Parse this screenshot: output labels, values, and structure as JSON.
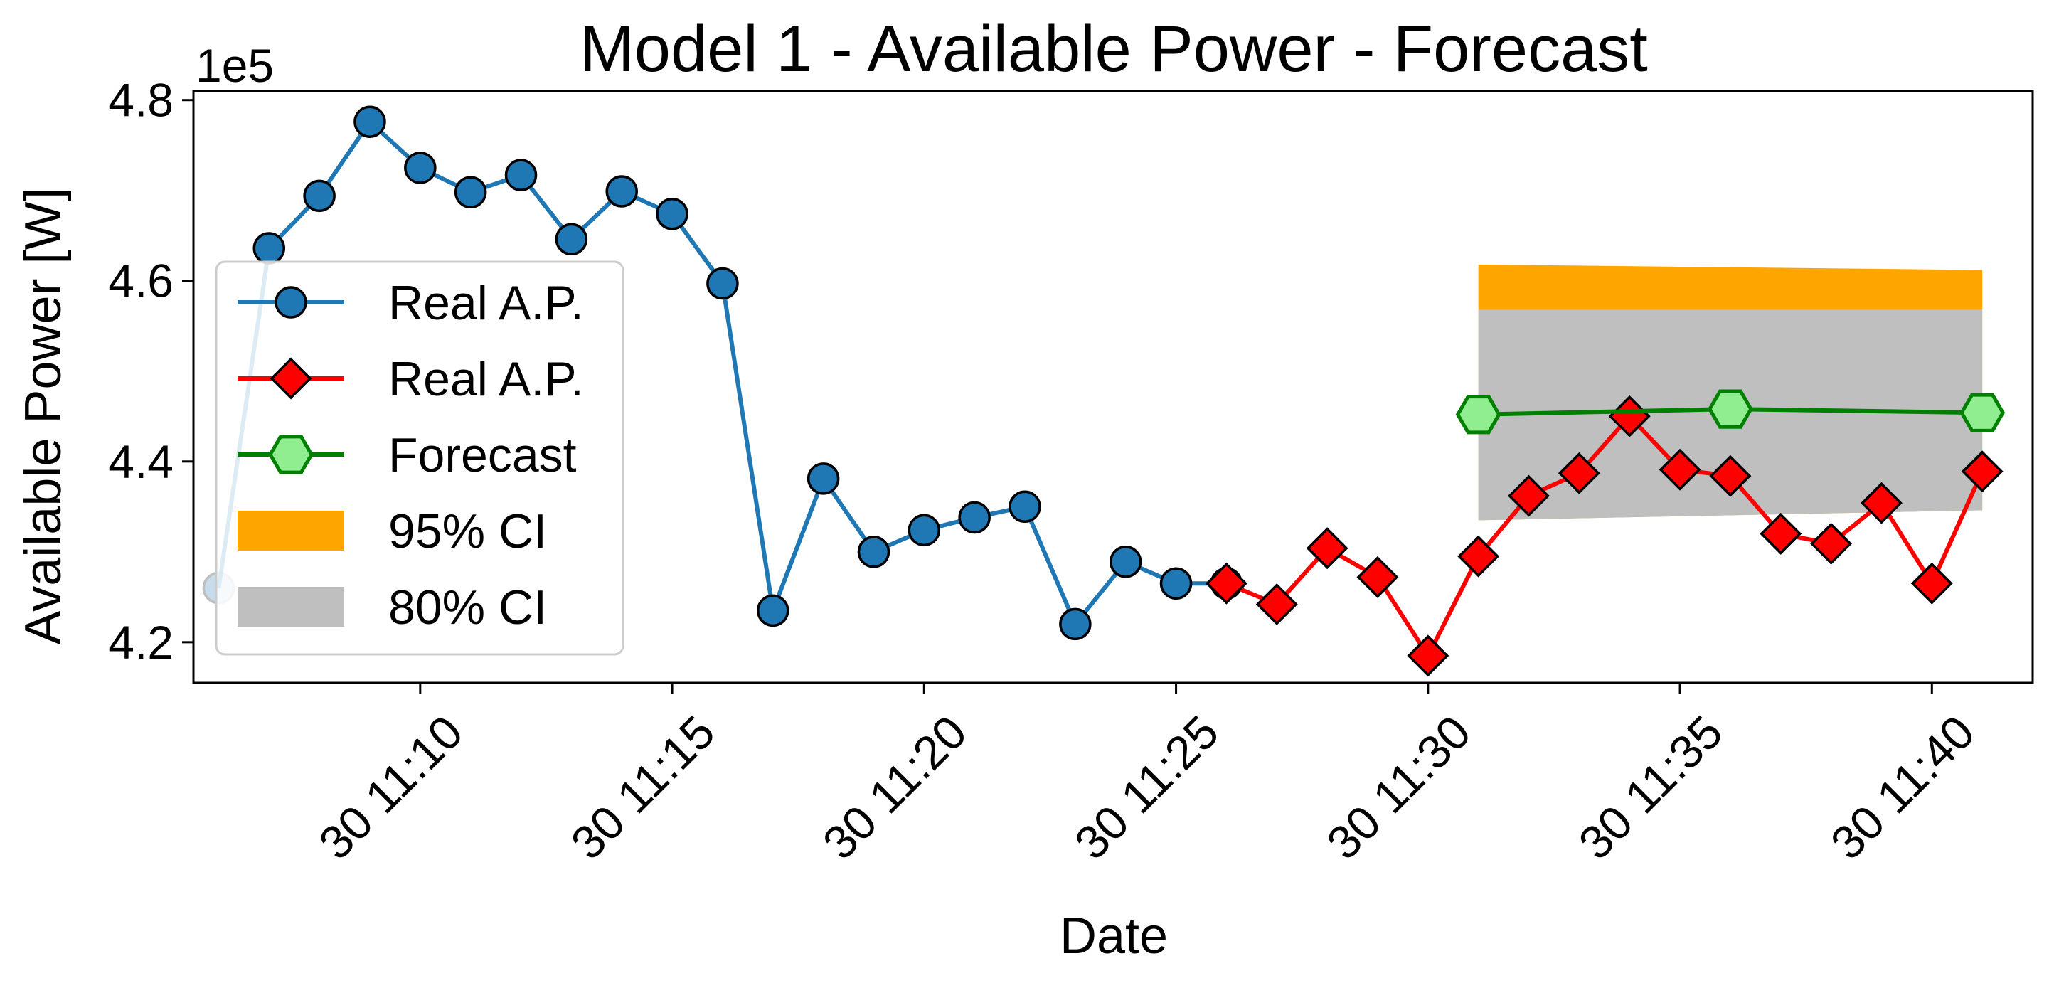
{
  "chart_data": {
    "type": "line",
    "title": "Model 1 - Available Power - Forecast",
    "xlabel": "Date",
    "ylabel": "Available Power [W]",
    "y_offset_text": "1e5",
    "y_scale_factor": 100000,
    "xlim": [
      "11:05:30",
      "11:42:00"
    ],
    "ylim": [
      4.155,
      4.81
    ],
    "x_ticks": [
      "30 11:10",
      "30 11:15",
      "30 11:20",
      "30 11:25",
      "30 11:30",
      "30 11:35",
      "30 11:40"
    ],
    "x_tick_times": [
      "11:10",
      "11:15",
      "11:20",
      "11:25",
      "11:30",
      "11:35",
      "11:40"
    ],
    "y_ticks": [
      4.2,
      4.4,
      4.6,
      4.8
    ],
    "y_tick_labels": [
      "4.2",
      "4.4",
      "4.6",
      "4.8"
    ],
    "x_tick_rotation": 45,
    "grid": false,
    "legend_position": "center-left",
    "series": [
      {
        "name": "Real A.P.",
        "color": "#1f77b4",
        "marker": "circle",
        "x": [
          "11:06",
          "11:07",
          "11:08",
          "11:09",
          "11:10",
          "11:11",
          "11:12",
          "11:13",
          "11:14",
          "11:15",
          "11:16",
          "11:17",
          "11:18",
          "11:19",
          "11:20",
          "11:21",
          "11:22",
          "11:23",
          "11:24",
          "11:25",
          "11:26"
        ],
        "y": [
          4.26,
          4.636,
          4.694,
          4.776,
          4.725,
          4.698,
          4.717,
          4.646,
          4.699,
          4.674,
          4.597,
          4.235,
          4.381,
          4.3,
          4.324,
          4.338,
          4.35,
          4.22,
          4.289,
          4.265,
          4.265
        ]
      },
      {
        "name": "Real A.P.",
        "color": "#ff0000",
        "marker": "diamond",
        "x": [
          "11:26",
          "11:27",
          "11:28",
          "11:29",
          "11:30",
          "11:31",
          "11:32",
          "11:33",
          "11:34",
          "11:35",
          "11:36",
          "11:37",
          "11:38",
          "11:39",
          "11:40",
          "11:41"
        ],
        "y": [
          4.265,
          4.242,
          4.304,
          4.272,
          4.185,
          4.295,
          4.362,
          4.387,
          4.45,
          4.391,
          4.384,
          4.32,
          4.309,
          4.354,
          4.265,
          4.389
        ]
      },
      {
        "name": "Forecast",
        "color": "#008000",
        "marker_fill": "#90ee90",
        "marker": "hexagon",
        "x": [
          "11:31",
          "11:36",
          "11:41"
        ],
        "y": [
          4.452,
          4.458,
          4.454
        ]
      }
    ],
    "bands": [
      {
        "name": "95% CI",
        "color": "#ffa500",
        "x": [
          "11:31",
          "11:41"
        ],
        "upper": [
          4.618,
          4.612
        ],
        "lower": [
          4.335,
          4.346
        ]
      },
      {
        "name": "80% CI",
        "color": "#bfbfbf",
        "x": [
          "11:31",
          "11:41"
        ],
        "upper": [
          4.568,
          4.568
        ],
        "lower": [
          4.335,
          4.346
        ]
      }
    ]
  }
}
